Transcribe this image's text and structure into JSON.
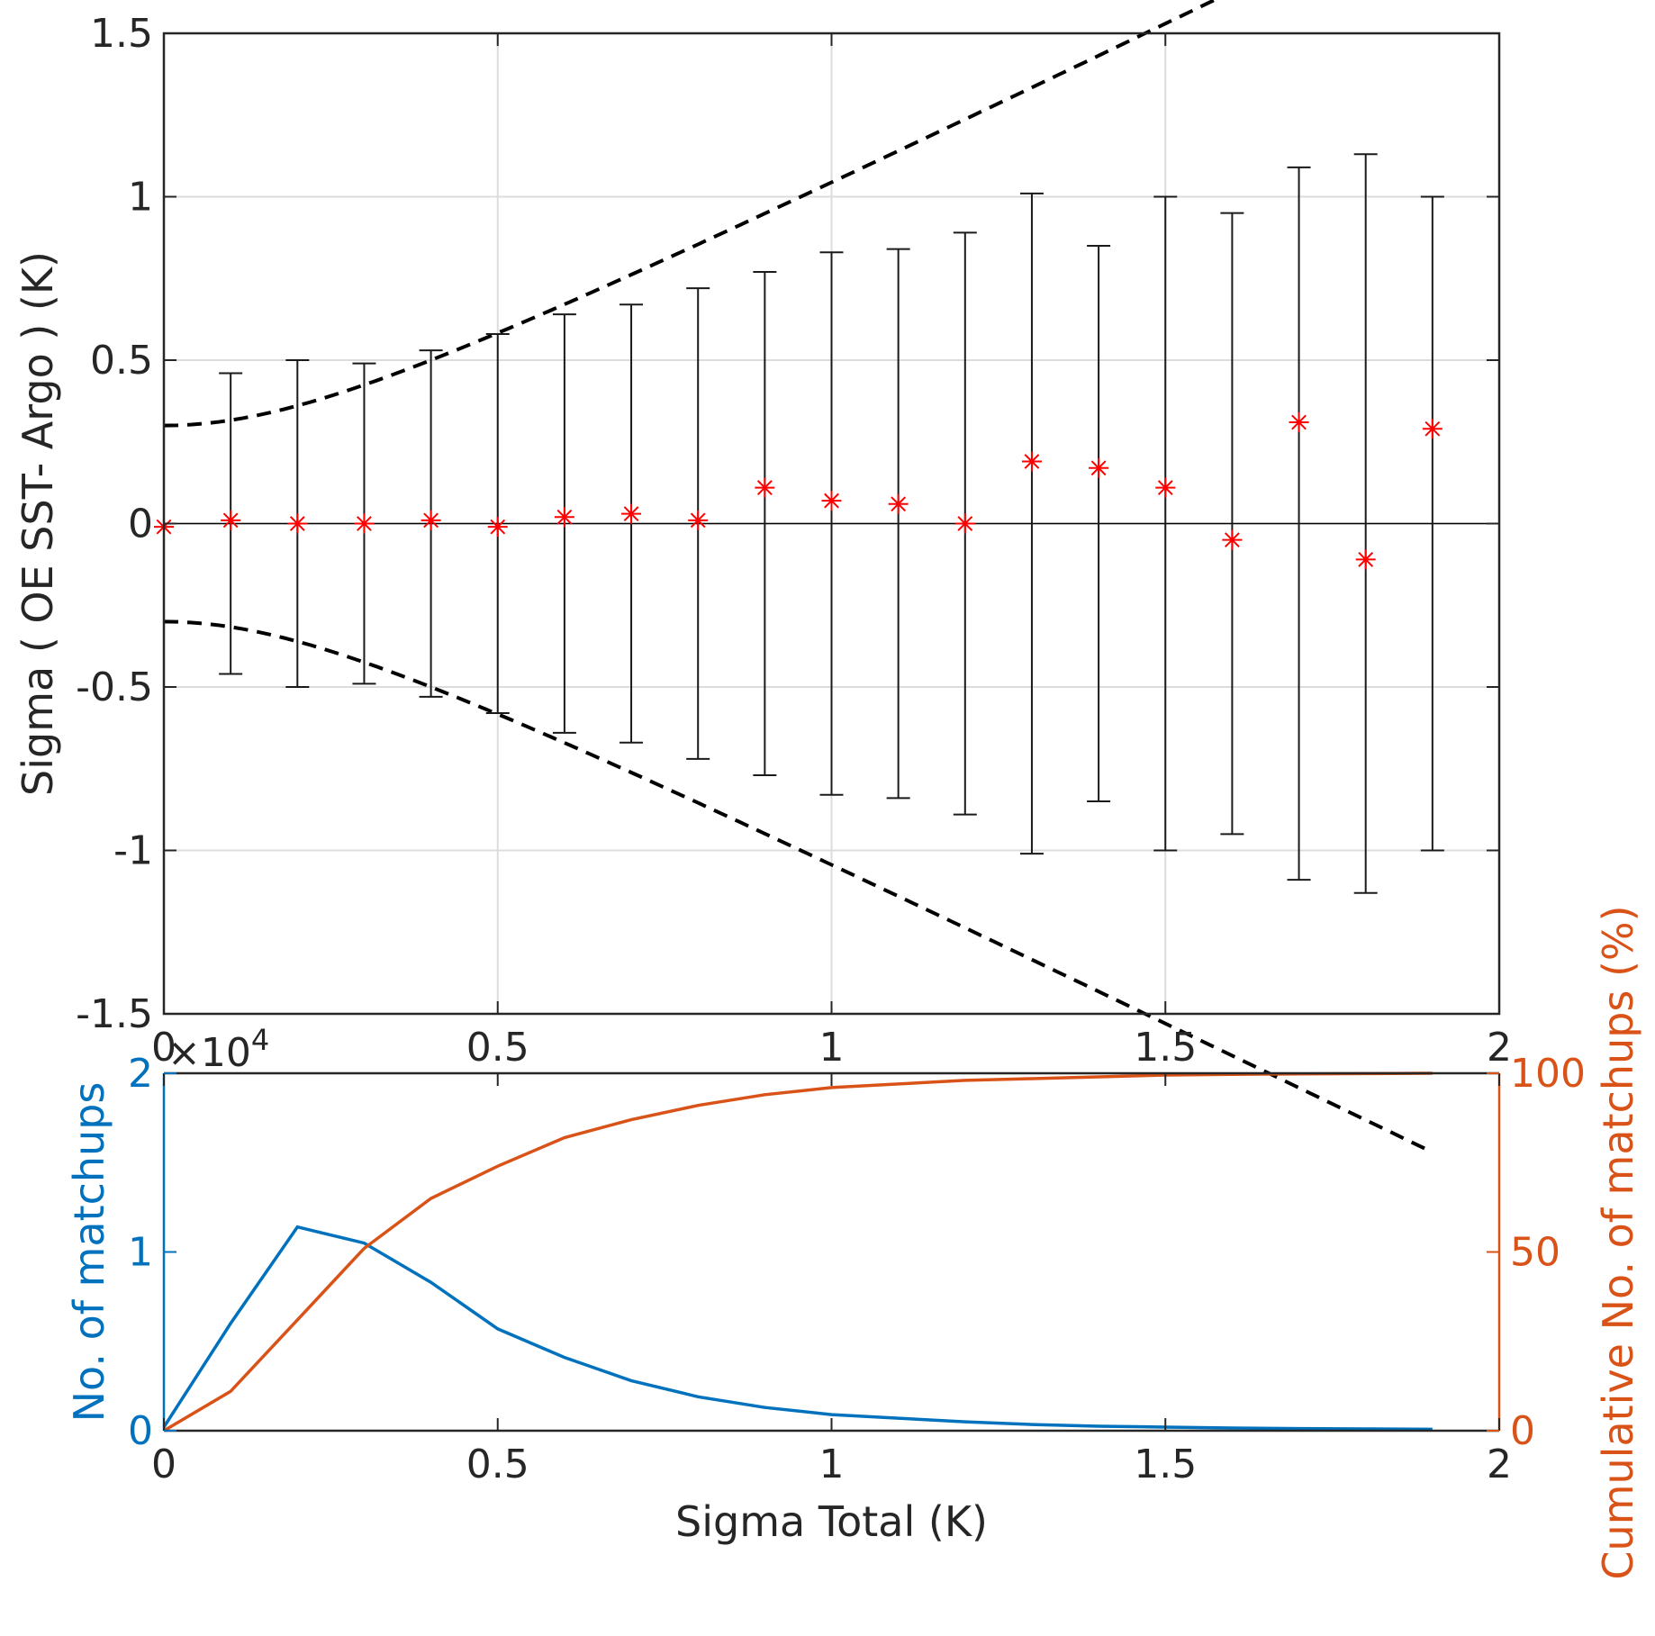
{
  "chart_data": [
    {
      "type": "errorbar",
      "title": "",
      "xlabel": "",
      "ylabel": "Sigma ( OE SST- Argo ) (K)",
      "xlim": [
        0,
        2
      ],
      "ylim": [
        -1.5,
        1.5
      ],
      "xticks": [
        "0",
        "0.5",
        "1",
        "1.5",
        "2"
      ],
      "yticks": [
        "-1.5",
        "-1",
        "-0.5",
        "0",
        "0.5",
        "1",
        "1.5"
      ],
      "grid": true,
      "x": [
        0.1,
        0.2,
        0.3,
        0.4,
        0.5,
        0.6,
        0.7,
        0.8,
        0.9,
        1.0,
        1.1,
        1.2,
        1.3,
        1.4,
        1.5,
        1.6,
        1.7,
        1.8,
        1.9
      ],
      "errorbar_halfwidth": [
        0.46,
        0.5,
        0.49,
        0.53,
        0.58,
        0.64,
        0.67,
        0.72,
        0.77,
        0.83,
        0.84,
        0.89,
        1.01,
        0.85,
        1.0,
        0.95,
        1.09,
        1.13,
        1.0
      ],
      "mean_markers": {
        "x": [
          0.0,
          0.1,
          0.2,
          0.3,
          0.4,
          0.5,
          0.6,
          0.7,
          0.8,
          0.9,
          1.0,
          1.1,
          1.2,
          1.3,
          1.4,
          1.5,
          1.6,
          1.7,
          1.8,
          1.9
        ],
        "y": [
          -0.01,
          0.01,
          0.0,
          0.0,
          0.01,
          -0.01,
          0.02,
          0.03,
          0.01,
          0.11,
          0.07,
          0.06,
          0.0,
          0.19,
          0.17,
          0.11,
          -0.05,
          0.31,
          -0.11,
          0.29
        ],
        "color": "#ff0000"
      },
      "envelope_note": "dashed ± sqrt(0.3² + x²)",
      "envelope_base": 0.3
    },
    {
      "type": "line",
      "title": "",
      "xlabel": "Sigma Total (K)",
      "ylabel_left": "No. of matchups",
      "ylabel_right": "Cumulative No. of matchups (%)",
      "left_exponent_base": "×10",
      "left_exponent_power": "4",
      "xlim": [
        0,
        2
      ],
      "ylim_left": [
        0,
        2
      ],
      "ylim_right": [
        0,
        100
      ],
      "xticks": [
        "0",
        "0.5",
        "1",
        "1.5",
        "2"
      ],
      "yticks_left": [
        "0",
        "1",
        "2"
      ],
      "yticks_right": [
        "0",
        "50",
        "100"
      ],
      "x": [
        0.0,
        0.1,
        0.2,
        0.3,
        0.4,
        0.5,
        0.6,
        0.7,
        0.8,
        0.9,
        1.0,
        1.1,
        1.2,
        1.3,
        1.4,
        1.5,
        1.6,
        1.7,
        1.8,
        1.9
      ],
      "series": [
        {
          "name": "No. of matchups",
          "axis": "left",
          "color": "#0072bd",
          "values": [
            0.02,
            0.6,
            1.14,
            1.05,
            0.83,
            0.57,
            0.41,
            0.28,
            0.19,
            0.13,
            0.09,
            0.07,
            0.05,
            0.035,
            0.025,
            0.02,
            0.015,
            0.012,
            0.01,
            0.008
          ]
        },
        {
          "name": "Cumulative No. of matchups (%)",
          "axis": "right",
          "color": "#d95319",
          "values": [
            0,
            11,
            31,
            51,
            65,
            74,
            82,
            87,
            91,
            94,
            96,
            97,
            98,
            98.5,
            99,
            99.5,
            99.7,
            99.8,
            99.9,
            100
          ]
        }
      ]
    }
  ],
  "colors": {
    "axis": "#262626",
    "grid": "#dcdcdc",
    "left_axis": "#0072bd",
    "right_axis": "#d95319",
    "marker": "#ff0000"
  }
}
